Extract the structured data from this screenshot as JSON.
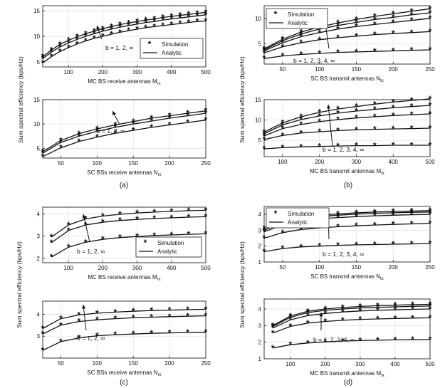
{
  "figure": {
    "ylabel": "Sum spectral efficiency (bps/Hz)",
    "legend": {
      "simulation": "Simulation",
      "analytic": "Analytic",
      "marker": "*"
    },
    "captions": [
      "(a)",
      "(b)",
      "(c)",
      "(d)"
    ]
  },
  "chart_data": [
    {
      "id": "a1",
      "type": "line",
      "xlabel": "MC BS receive antennas",
      "xsub": "rx",
      "xsym": "M",
      "x": [
        25,
        50,
        75,
        100,
        125,
        150,
        175,
        200,
        225,
        250,
        275,
        300,
        325,
        350,
        375,
        400,
        425,
        450,
        475,
        500
      ],
      "xlim": [
        25,
        500
      ],
      "ylim": [
        4,
        16
      ],
      "xticks": [
        100,
        200,
        300,
        400,
        500
      ],
      "yticks": [
        5,
        10,
        15
      ],
      "annotation": "b = 1, 2, ∞",
      "legend": "right",
      "series": [
        {
          "name": "b=1",
          "values": [
            4.8,
            6.0,
            7.0,
            7.8,
            8.5,
            9.1,
            9.6,
            10.0,
            10.4,
            10.8,
            11.1,
            11.4,
            11.7,
            11.9,
            12.1,
            12.3,
            12.5,
            12.7,
            12.9,
            13.0
          ]
        },
        {
          "name": "b=2",
          "values": [
            5.6,
            6.9,
            7.9,
            8.7,
            9.4,
            10.0,
            10.5,
            11.0,
            11.4,
            11.8,
            12.1,
            12.4,
            12.7,
            12.9,
            13.2,
            13.4,
            13.6,
            13.8,
            14.0,
            14.2
          ]
        },
        {
          "name": "b=inf",
          "values": [
            6.0,
            7.3,
            8.4,
            9.2,
            9.9,
            10.5,
            11.0,
            11.5,
            11.9,
            12.3,
            12.6,
            12.9,
            13.2,
            13.4,
            13.7,
            13.9,
            14.1,
            14.3,
            14.5,
            14.7
          ]
        }
      ]
    },
    {
      "id": "a2",
      "type": "line",
      "xlabel": "SC BSs receive antennas",
      "xsub": "rx",
      "xsym": "N",
      "x": [
        25,
        50,
        75,
        100,
        125,
        150,
        175,
        200,
        225,
        250
      ],
      "xlim": [
        25,
        250
      ],
      "ylim": [
        3,
        15
      ],
      "xticks": [
        50,
        100,
        150,
        200,
        250
      ],
      "yticks": [
        5,
        10,
        15
      ],
      "annotation": "b = 1, 2, ∞",
      "legend": "none",
      "series": [
        {
          "name": "b=1",
          "values": [
            3.3,
            5.1,
            6.4,
            7.3,
            8.1,
            8.7,
            9.3,
            9.8,
            10.3,
            10.8
          ]
        },
        {
          "name": "b=2",
          "values": [
            4.0,
            6.2,
            7.5,
            8.5,
            9.3,
            10.0,
            10.6,
            11.2,
            11.7,
            12.2
          ]
        },
        {
          "name": "b=inf",
          "values": [
            4.3,
            6.6,
            8.0,
            9.0,
            9.8,
            10.5,
            11.2,
            11.7,
            12.2,
            12.7
          ]
        }
      ]
    },
    {
      "id": "b1",
      "type": "line",
      "xlabel": "SC BS transmit antennas",
      "xsub": "tx",
      "xsym": "N",
      "x": [
        25,
        50,
        75,
        100,
        125,
        150,
        175,
        200,
        225,
        250
      ],
      "xlim": [
        25,
        250
      ],
      "ylim": [
        1,
        12.5
      ],
      "xticks": [
        50,
        100,
        150,
        200,
        250
      ],
      "yticks": [
        5,
        10
      ],
      "annotation": "b = 1, 2, 3, 4, ∞",
      "legend": "left",
      "series": [
        {
          "name": "b=1",
          "values": [
            2.1,
            2.6,
            2.9,
            3.1,
            3.3,
            3.4,
            3.5,
            3.6,
            3.7,
            3.8
          ]
        },
        {
          "name": "b=2",
          "values": [
            3.2,
            4.4,
            5.2,
            5.8,
            6.2,
            6.5,
            6.8,
            7.0,
            7.2,
            7.4
          ]
        },
        {
          "name": "b=3",
          "values": [
            3.6,
            5.2,
            6.4,
            7.2,
            7.9,
            8.4,
            8.8,
            9.2,
            9.6,
            10.0
          ]
        },
        {
          "name": "b=4",
          "values": [
            3.8,
            5.6,
            6.9,
            7.9,
            8.6,
            9.2,
            9.8,
            10.2,
            10.7,
            11.1
          ]
        },
        {
          "name": "b=inf",
          "values": [
            4.0,
            5.9,
            7.3,
            8.3,
            9.1,
            9.8,
            10.4,
            10.9,
            11.4,
            11.9
          ]
        }
      ]
    },
    {
      "id": "b2",
      "type": "line",
      "xlabel": "MC BS transmit antennas",
      "xsub": "tx",
      "xsym": "M",
      "x": [
        50,
        100,
        150,
        200,
        250,
        300,
        350,
        400,
        450,
        500
      ],
      "xlim": [
        50,
        500
      ],
      "ylim": [
        1,
        15
      ],
      "xticks": [
        100,
        200,
        300,
        400,
        500
      ],
      "yticks": [
        5,
        10,
        15
      ],
      "annotation": "b = 1, 2, 3, 4, ∞",
      "legend": "none",
      "series": [
        {
          "name": "b=1",
          "values": [
            2.9,
            3.2,
            3.4,
            3.5,
            3.6,
            3.7,
            3.7,
            3.8,
            3.8,
            3.8
          ]
        },
        {
          "name": "b=2",
          "values": [
            5.2,
            6.2,
            6.8,
            7.1,
            7.4,
            7.6,
            7.7,
            7.8,
            7.9,
            8.0
          ]
        },
        {
          "name": "b=3",
          "values": [
            6.1,
            7.9,
            8.9,
            9.6,
            10.1,
            10.5,
            10.8,
            11.1,
            11.3,
            11.5
          ]
        },
        {
          "name": "b=4",
          "values": [
            6.6,
            8.8,
            10.1,
            11.0,
            11.7,
            12.2,
            12.6,
            13.0,
            13.3,
            13.6
          ]
        },
        {
          "name": "b=inf",
          "values": [
            7.0,
            9.3,
            10.8,
            11.9,
            12.7,
            13.3,
            13.9,
            14.4,
            14.8,
            15.2
          ]
        }
      ]
    },
    {
      "id": "c1",
      "type": "line",
      "xlabel": "MC BS receive antennas",
      "xsub": "rx",
      "xsym": "M",
      "x": [
        50,
        100,
        150,
        200,
        250,
        300,
        350,
        400,
        450,
        500
      ],
      "xlim": [
        25,
        500
      ],
      "ylim": [
        1.8,
        4.3
      ],
      "xticks": [
        100,
        200,
        300,
        400,
        500
      ],
      "yticks": [
        2,
        3,
        4
      ],
      "annotation": "b = 1, 2, ∞",
      "legend": "right",
      "series": [
        {
          "name": "b=1",
          "values": [
            2.05,
            2.5,
            2.72,
            2.85,
            2.93,
            2.98,
            3.02,
            3.05,
            3.08,
            3.1
          ]
        },
        {
          "name": "b=2",
          "values": [
            2.7,
            3.25,
            3.5,
            3.62,
            3.7,
            3.75,
            3.79,
            3.82,
            3.85,
            3.87
          ]
        },
        {
          "name": "b=inf",
          "values": [
            2.95,
            3.5,
            3.77,
            3.9,
            3.98,
            4.04,
            4.08,
            4.11,
            4.14,
            4.16
          ]
        }
      ]
    },
    {
      "id": "c2",
      "type": "line",
      "xlabel": "SC BSs receive antennas",
      "xsub": "rx",
      "xsym": "N",
      "x": [
        25,
        50,
        75,
        100,
        125,
        150,
        175,
        200,
        225,
        250
      ],
      "xlim": [
        25,
        250
      ],
      "ylim": [
        2,
        4.6
      ],
      "xticks": [
        50,
        100,
        150,
        200,
        250
      ],
      "yticks": [
        3,
        4
      ],
      "annotation": "b = 1, 2, ∞",
      "legend": "none",
      "series": [
        {
          "name": "b=1",
          "values": [
            2.35,
            2.75,
            2.92,
            3.02,
            3.07,
            3.1,
            3.13,
            3.15,
            3.17,
            3.18
          ]
        },
        {
          "name": "b=2",
          "values": [
            3.1,
            3.5,
            3.67,
            3.75,
            3.8,
            3.84,
            3.87,
            3.89,
            3.91,
            3.93
          ]
        },
        {
          "name": "b=inf",
          "values": [
            3.35,
            3.8,
            3.97,
            4.05,
            4.1,
            4.14,
            4.17,
            4.19,
            4.21,
            4.23
          ]
        }
      ]
    },
    {
      "id": "d1",
      "type": "line",
      "xlabel": "SC BS transmit antennas",
      "xsub": "tx",
      "xsym": "N",
      "x": [
        25,
        50,
        75,
        100,
        125,
        150,
        175,
        200,
        225,
        250
      ],
      "xlim": [
        25,
        250
      ],
      "ylim": [
        1,
        4.5
      ],
      "xticks": [
        50,
        100,
        150,
        200,
        250
      ],
      "yticks": [
        1,
        2,
        3,
        4
      ],
      "annotation": "b = 1, 2, 3, 4, ∞",
      "legend": "top-left",
      "series": [
        {
          "name": "b=1",
          "values": [
            1.65,
            1.85,
            1.95,
            2.0,
            2.05,
            2.08,
            2.1,
            2.12,
            2.14,
            2.16
          ]
        },
        {
          "name": "b=2",
          "values": [
            2.5,
            2.85,
            3.05,
            3.15,
            3.22,
            3.28,
            3.33,
            3.37,
            3.4,
            3.43
          ]
        },
        {
          "name": "b=3",
          "values": [
            2.9,
            3.35,
            3.6,
            3.72,
            3.8,
            3.86,
            3.91,
            3.95,
            3.98,
            4.0
          ]
        },
        {
          "name": "b=4",
          "values": [
            3.0,
            3.5,
            3.75,
            3.87,
            3.95,
            4.02,
            4.07,
            4.1,
            4.13,
            4.15
          ]
        },
        {
          "name": "b=inf",
          "values": [
            3.1,
            3.58,
            3.83,
            3.95,
            4.03,
            4.1,
            4.15,
            4.18,
            4.21,
            4.24
          ]
        }
      ]
    },
    {
      "id": "d2",
      "type": "line",
      "xlabel": "MC BS transmit antennas",
      "xsub": "tx",
      "xsym": "M",
      "x": [
        50,
        100,
        150,
        200,
        250,
        300,
        350,
        400,
        450,
        500
      ],
      "xlim": [
        25,
        500
      ],
      "ylim": [
        1,
        4.6
      ],
      "xticks": [
        100,
        200,
        300,
        400,
        500
      ],
      "yticks": [
        1,
        2,
        3,
        4
      ],
      "annotation": "b = 1, 2, 3, 4, ∞",
      "legend": "none",
      "series": [
        {
          "name": "b=1",
          "values": [
            1.65,
            1.85,
            1.95,
            2.02,
            2.07,
            2.1,
            2.12,
            2.14,
            2.15,
            2.16
          ]
        },
        {
          "name": "b=2",
          "values": [
            2.55,
            2.95,
            3.15,
            3.25,
            3.32,
            3.37,
            3.4,
            3.43,
            3.45,
            3.47
          ]
        },
        {
          "name": "b=3",
          "values": [
            2.85,
            3.35,
            3.6,
            3.73,
            3.82,
            3.88,
            3.92,
            3.95,
            3.98,
            4.0
          ]
        },
        {
          "name": "b=4",
          "values": [
            2.95,
            3.5,
            3.78,
            3.92,
            4.0,
            4.06,
            4.1,
            4.13,
            4.16,
            4.18
          ]
        },
        {
          "name": "b=inf",
          "values": [
            3.0,
            3.58,
            3.86,
            4.0,
            4.09,
            4.15,
            4.2,
            4.23,
            4.26,
            4.28
          ]
        }
      ]
    }
  ]
}
